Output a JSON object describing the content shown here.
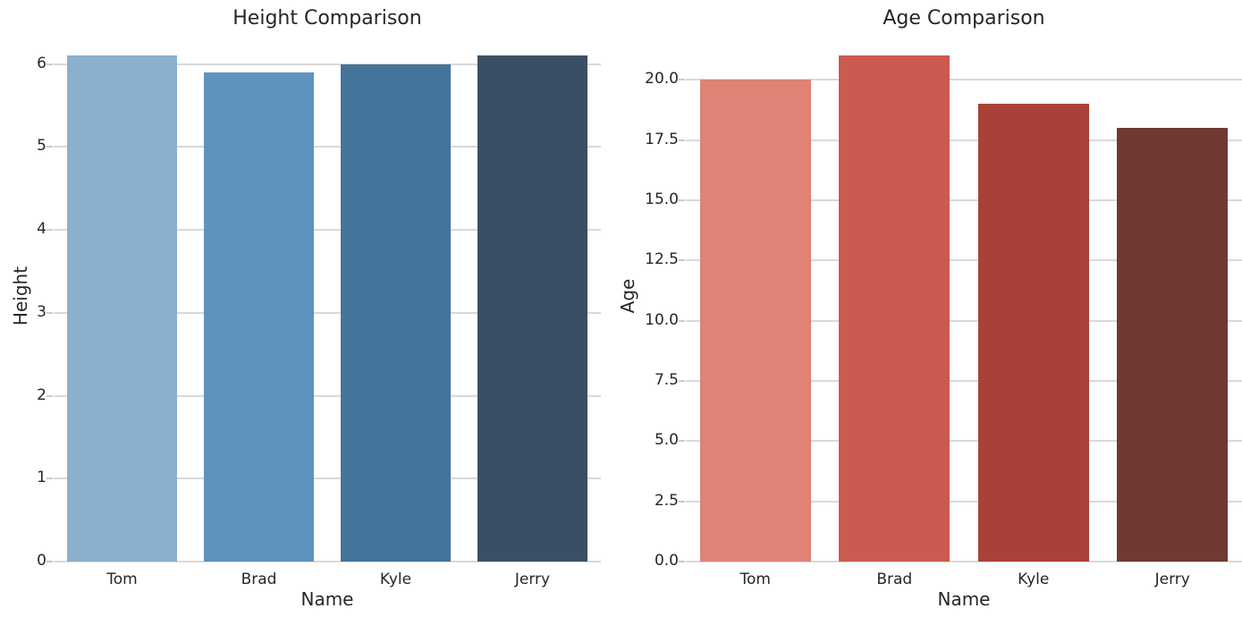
{
  "chart_data": [
    {
      "type": "bar",
      "title": "Height Comparison",
      "xlabel": "Name",
      "ylabel": "Height",
      "categories": [
        "Tom",
        "Brad",
        "Kyle",
        "Jerry"
      ],
      "values": [
        6.1,
        5.9,
        6.0,
        6.1
      ],
      "bar_colors": [
        "#8bb0cd",
        "#5e93bd",
        "#45749a",
        "#3a4f63"
      ],
      "ylim": [
        0,
        6.405
      ],
      "yticks": [
        0,
        1,
        2,
        3,
        4,
        5,
        6
      ],
      "ytick_labels": [
        "0",
        "1",
        "2",
        "3",
        "4",
        "5",
        "6"
      ],
      "grid": "horizontal",
      "legend": "none",
      "bar_width_fraction": 0.8
    },
    {
      "type": "bar",
      "title": "Age Comparison",
      "xlabel": "Name",
      "ylabel": "Age",
      "categories": [
        "Tom",
        "Brad",
        "Kyle",
        "Jerry"
      ],
      "values": [
        20,
        21,
        19,
        18
      ],
      "bar_colors": [
        "#de8375",
        "#cc5a50",
        "#a94138",
        "#6f3a34"
      ],
      "ylim": [
        0,
        22.05
      ],
      "yticks": [
        0,
        2.5,
        5,
        7.5,
        10,
        12.5,
        15,
        17.5,
        20
      ],
      "ytick_labels": [
        "0.0",
        "2.5",
        "5.0",
        "7.5",
        "10.0",
        "12.5",
        "15.0",
        "17.5",
        "20.0"
      ],
      "grid": "horizontal",
      "legend": "none",
      "bar_width_fraction": 0.8
    }
  ],
  "style": {
    "grid_color": "#d9d9d9",
    "tick_color": "#cbcbcb",
    "text_color": "#262626",
    "background": "#ffffff"
  }
}
